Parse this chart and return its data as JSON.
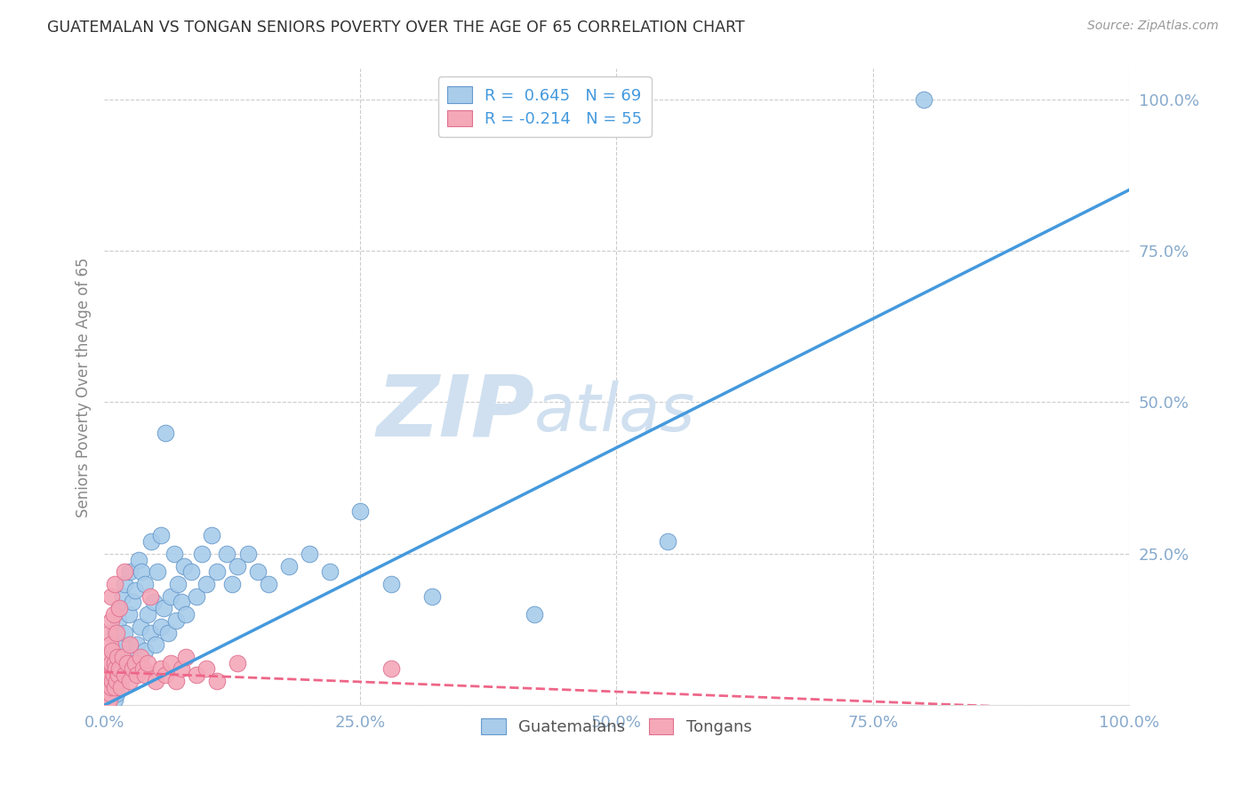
{
  "title": "GUATEMALAN VS TONGAN SENIORS POVERTY OVER THE AGE OF 65 CORRELATION CHART",
  "source": "Source: ZipAtlas.com",
  "ylabel": "Seniors Poverty Over the Age of 65",
  "xlim": [
    0,
    1.0
  ],
  "ylim": [
    0,
    1.05
  ],
  "xticks": [
    0.0,
    0.25,
    0.5,
    0.75,
    1.0
  ],
  "xtick_labels": [
    "0.0%",
    "25.0%",
    "50.0%",
    "75.0%",
    "100.0%"
  ],
  "yticks": [
    0.0,
    0.25,
    0.5,
    0.75,
    1.0
  ],
  "ytick_labels": [
    "",
    "25.0%",
    "50.0%",
    "75.0%",
    "100.0%"
  ],
  "guatemalan_color": "#A8CCEA",
  "tongan_color": "#F4A8B8",
  "guatemalan_edge": "#6699CC",
  "tongan_edge": "#E07090",
  "regression_blue": "#4499DD",
  "regression_pink": "#EE6688",
  "R_guatemalan": 0.645,
  "N_guatemalan": 69,
  "R_tongan": -0.214,
  "N_tongan": 55,
  "blue_line_x0": 0.0,
  "blue_line_y0": 0.0,
  "blue_line_x1": 1.0,
  "blue_line_y1": 0.85,
  "pink_line_x0": 0.0,
  "pink_line_y0": 0.055,
  "pink_line_x1": 1.0,
  "pink_line_y1": -0.01,
  "guatemalan_x": [
    0.8,
    0.01,
    0.01,
    0.01,
    0.01,
    0.01,
    0.012,
    0.012,
    0.014,
    0.015,
    0.015,
    0.016,
    0.018,
    0.018,
    0.02,
    0.02,
    0.02,
    0.022,
    0.024,
    0.025,
    0.025,
    0.026,
    0.028,
    0.03,
    0.03,
    0.032,
    0.034,
    0.035,
    0.036,
    0.04,
    0.04,
    0.042,
    0.045,
    0.046,
    0.048,
    0.05,
    0.052,
    0.055,
    0.055,
    0.058,
    0.06,
    0.062,
    0.065,
    0.068,
    0.07,
    0.072,
    0.075,
    0.078,
    0.08,
    0.085,
    0.09,
    0.095,
    0.1,
    0.105,
    0.11,
    0.12,
    0.125,
    0.13,
    0.14,
    0.15,
    0.16,
    0.18,
    0.2,
    0.22,
    0.25,
    0.28,
    0.32,
    0.42,
    0.55
  ],
  "guatemalan_y": [
    1.0,
    0.01,
    0.03,
    0.05,
    0.08,
    0.12,
    0.02,
    0.09,
    0.14,
    0.04,
    0.16,
    0.06,
    0.1,
    0.18,
    0.05,
    0.12,
    0.2,
    0.07,
    0.15,
    0.06,
    0.22,
    0.08,
    0.17,
    0.07,
    0.19,
    0.1,
    0.24,
    0.13,
    0.22,
    0.09,
    0.2,
    0.15,
    0.12,
    0.27,
    0.17,
    0.1,
    0.22,
    0.13,
    0.28,
    0.16,
    0.45,
    0.12,
    0.18,
    0.25,
    0.14,
    0.2,
    0.17,
    0.23,
    0.15,
    0.22,
    0.18,
    0.25,
    0.2,
    0.28,
    0.22,
    0.25,
    0.2,
    0.23,
    0.25,
    0.22,
    0.2,
    0.23,
    0.25,
    0.22,
    0.32,
    0.2,
    0.18,
    0.15,
    0.27
  ],
  "tongan_x": [
    0.003,
    0.004,
    0.004,
    0.005,
    0.005,
    0.005,
    0.005,
    0.006,
    0.006,
    0.006,
    0.007,
    0.007,
    0.007,
    0.007,
    0.008,
    0.008,
    0.009,
    0.009,
    0.01,
    0.01,
    0.01,
    0.011,
    0.012,
    0.012,
    0.013,
    0.014,
    0.015,
    0.015,
    0.016,
    0.018,
    0.02,
    0.02,
    0.022,
    0.025,
    0.025,
    0.028,
    0.03,
    0.032,
    0.035,
    0.038,
    0.04,
    0.042,
    0.045,
    0.05,
    0.055,
    0.06,
    0.065,
    0.07,
    0.075,
    0.08,
    0.09,
    0.1,
    0.11,
    0.13,
    0.28
  ],
  "tongan_y": [
    0.0,
    0.02,
    0.06,
    0.01,
    0.04,
    0.08,
    0.12,
    0.02,
    0.05,
    0.1,
    0.03,
    0.07,
    0.14,
    0.18,
    0.04,
    0.09,
    0.05,
    0.15,
    0.03,
    0.07,
    0.2,
    0.06,
    0.04,
    0.12,
    0.08,
    0.05,
    0.06,
    0.16,
    0.03,
    0.08,
    0.05,
    0.22,
    0.07,
    0.04,
    0.1,
    0.06,
    0.07,
    0.05,
    0.08,
    0.06,
    0.05,
    0.07,
    0.18,
    0.04,
    0.06,
    0.05,
    0.07,
    0.04,
    0.06,
    0.08,
    0.05,
    0.06,
    0.04,
    0.07,
    0.06
  ],
  "background_color": "#FFFFFF",
  "grid_color": "#CCCCCC",
  "title_color": "#333333",
  "ytick_color": "#88AACC",
  "xtick_color": "#88AACC",
  "watermark_color": "#D0E0F0",
  "legend_r_color": "#4499DD",
  "axis_label_color": "#888888"
}
